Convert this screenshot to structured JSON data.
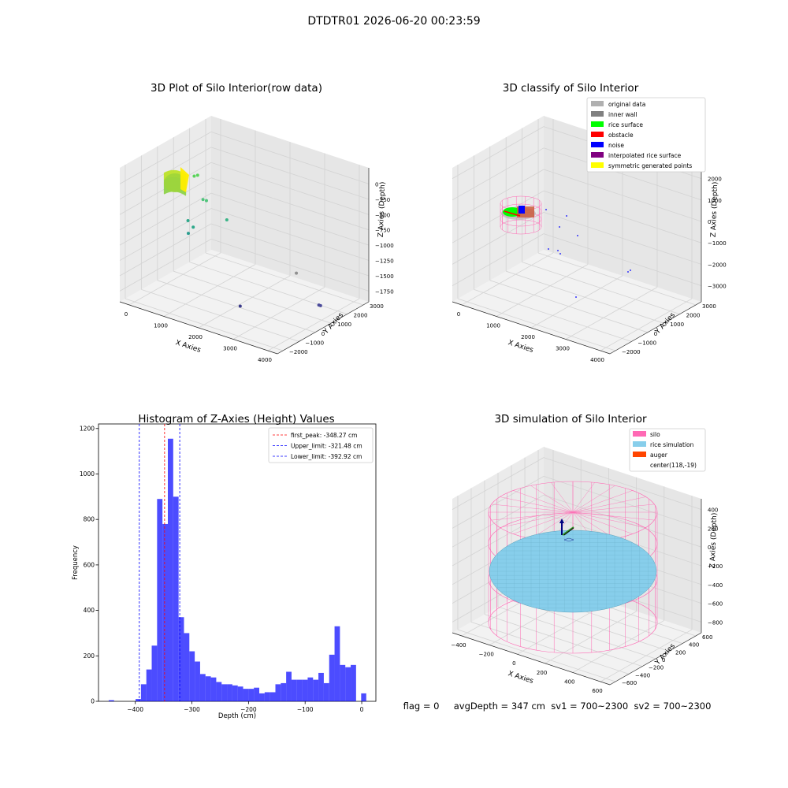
{
  "suptitle": "DTDTR01 2026-06-20 00:23:59",
  "colors": {
    "grid": "#d3d3d3",
    "pane": "#f2f2f2",
    "hist_bar": "#0000ff",
    "first_peak": "#ff0000",
    "limits": "#0000ff",
    "silo": "#ff69b4",
    "rice_sim": "#87ceeb",
    "auger": "#ff4500"
  },
  "status_line": "flag = 0     avgDepth = 347 cm  sv1 = 700~2300  sv2 = 700~2300",
  "chart_data": [
    {
      "type": "scatter3d",
      "title": "3D Plot of Silo Interior(row data)",
      "xlabel": "X Axies",
      "ylabel": "Y Axies",
      "zlabel": "Z Axies (Depth)",
      "x_ticks": [
        "0",
        "1000",
        "2000",
        "3000",
        "4000"
      ],
      "y_ticks": [
        "−2000",
        "−1000",
        "0",
        "1000",
        "2000",
        "3000"
      ],
      "z_ticks": [
        "0",
        "−250",
        "−500",
        "−750",
        "−1000",
        "−1250",
        "−1500",
        "−1750"
      ],
      "points": [
        {
          "x": 300,
          "y": 1000,
          "z": -380,
          "color": "#5ad35a"
        },
        {
          "x": 400,
          "y": 1000,
          "z": -350,
          "color": "#5ad35a"
        },
        {
          "x": 700,
          "y": 700,
          "z": -620,
          "color": "#4ec47a"
        },
        {
          "x": 800,
          "y": 700,
          "z": -620,
          "color": "#4ec47a"
        },
        {
          "x": 1300,
          "y": 900,
          "z": -850,
          "color": "#3bb587"
        },
        {
          "x": 500,
          "y": 200,
          "z": -900,
          "color": "#2ea88a"
        },
        {
          "x": 700,
          "y": 100,
          "z": -950,
          "color": "#2ea88a"
        },
        {
          "x": 700,
          "y": -200,
          "z": -1000,
          "color": "#2a9d8f"
        },
        {
          "x": 2900,
          "y": 1800,
          "z": -1500,
          "color": "#909090"
        },
        {
          "x": 3700,
          "y": 1500,
          "z": -1800,
          "color": "#4b4b9a"
        },
        {
          "x": 3750,
          "y": 1500,
          "z": -1800,
          "color": "#4b4b9a"
        },
        {
          "x": 2500,
          "y": -800,
          "z": -1700,
          "color": "#3a3a8a"
        }
      ]
    },
    {
      "type": "scatter3d",
      "title": "3D classify of Silo Interior",
      "xlabel": "X Axies",
      "ylabel": "Y Axies",
      "zlabel": "Z Axies (Depth)",
      "x_ticks": [
        "0",
        "1000",
        "2000",
        "3000",
        "4000"
      ],
      "y_ticks": [
        "−2000",
        "−1000",
        "0",
        "1000",
        "2000",
        "3000"
      ],
      "z_ticks": [
        "2000",
        "1000",
        "0",
        "−1000",
        "−2000",
        "−3000"
      ],
      "legend": [
        {
          "label": "original data",
          "color": "#b0b0b0"
        },
        {
          "label": "inner wall",
          "color": "#808080"
        },
        {
          "label": "rice surface",
          "color": "#00ff00"
        },
        {
          "label": "obstacle",
          "color": "#ff0000"
        },
        {
          "label": "noise",
          "color": "#0000ff"
        },
        {
          "label": "interpolated rice surface",
          "color": "#800080"
        },
        {
          "label": "symmetric generated points",
          "color": "#ffff00"
        }
      ],
      "legend_loc": "upper right"
    },
    {
      "type": "bar",
      "title": "Histogram of Z-Axies (Height) Values",
      "xlabel": "Depth (cm)",
      "ylabel": "Frequency",
      "xlim": [
        -465,
        25
      ],
      "ylim": [
        0,
        1220
      ],
      "x_ticks": [
        -400,
        -300,
        -200,
        -100,
        0
      ],
      "x_tick_labels": [
        "−400",
        "−300",
        "−200",
        "−100",
        "0"
      ],
      "y_ticks": [
        0,
        200,
        400,
        600,
        800,
        1000,
        1200
      ],
      "bin_edges": [
        -447,
        -437.5,
        -428,
        -418.5,
        -409,
        -399.5,
        -390,
        -380.5,
        -371,
        -361.5,
        -352,
        -342.5,
        -333,
        -323.5,
        -314,
        -304.5,
        -295,
        -285.5,
        -276,
        -266.5,
        -257,
        -247.5,
        -238,
        -228.5,
        -219,
        -209.5,
        -200,
        -190.5,
        -181,
        -171.5,
        -162,
        -152.5,
        -143,
        -133.5,
        -124,
        -114.5,
        -105,
        -95.5,
        -86,
        -76.5,
        -67,
        -57.5,
        -48,
        -38.5,
        -29,
        -19.5,
        -10,
        -0.5
      ],
      "counts": [
        5,
        0,
        0,
        0,
        0,
        10,
        75,
        140,
        245,
        890,
        780,
        1155,
        900,
        370,
        300,
        220,
        175,
        120,
        110,
        105,
        85,
        75,
        75,
        70,
        65,
        55,
        55,
        60,
        35,
        40,
        40,
        75,
        80,
        130,
        95,
        95,
        95,
        105,
        95,
        125,
        80,
        205,
        330,
        160,
        150,
        160,
        0
      ],
      "extra_bars": [
        {
          "x0": -1,
          "x1": 8,
          "value": 35
        }
      ],
      "vlines": [
        {
          "x": -348.27,
          "label": "first_peak: -348.27 cm",
          "color": "#ff0000"
        },
        {
          "x": -321.48,
          "label": "Upper_limit: -321.48 cm",
          "color": "#0000ff"
        },
        {
          "x": -392.92,
          "label": "Lower_limit: -392.92 cm",
          "color": "#0000ff"
        }
      ],
      "legend_loc": "upper right"
    },
    {
      "type": "surface3d",
      "title": "3D simulation of Silo Interior",
      "xlabel": "X Axies",
      "ylabel": "Y Axies",
      "zlabel": "Z Axies (Depth)",
      "x_ticks": [
        "−400",
        "−200",
        "0",
        "200",
        "400",
        "600"
      ],
      "y_ticks": [
        "−600",
        "−400",
        "−200",
        "0",
        "200",
        "400",
        "600"
      ],
      "z_ticks": [
        "400",
        "200",
        "0",
        "−200",
        "−400",
        "−600",
        "−800"
      ],
      "legend": [
        {
          "label": "silo",
          "color": "#ff69b4"
        },
        {
          "label": "rice simulation",
          "color": "#87ceeb"
        },
        {
          "label": "auger",
          "color": "#ff4500"
        },
        {
          "label": "center(118,-19)",
          "color": null
        }
      ],
      "legend_loc": "upper right"
    }
  ]
}
